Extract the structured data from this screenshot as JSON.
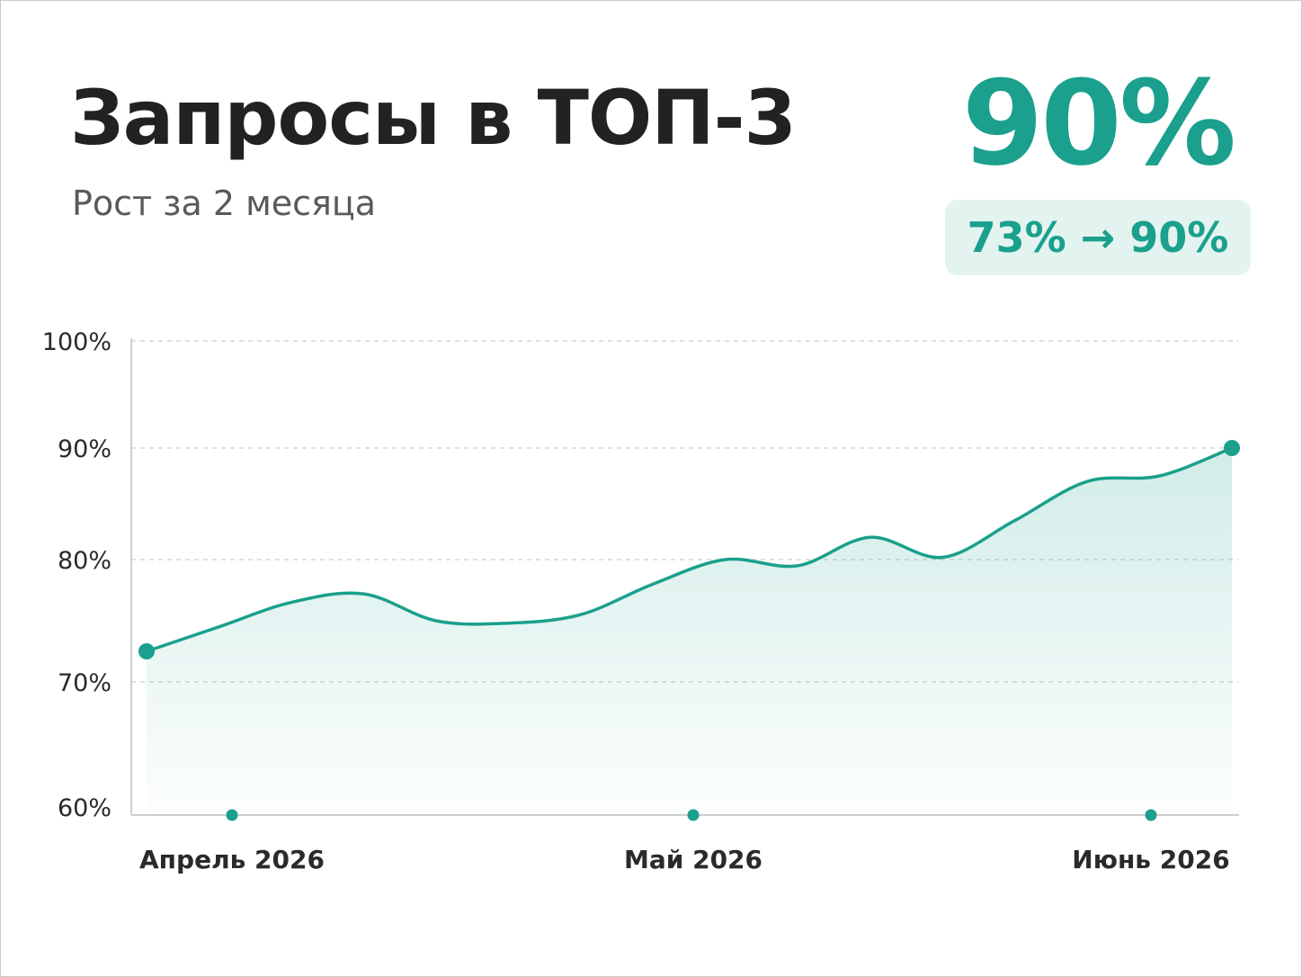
{
  "header": {
    "title": "Запросы в ТОП-3",
    "subtitle": "Рост за 2 месяца"
  },
  "kpi": {
    "value": "90%",
    "change": "73% → 90%"
  },
  "colors": {
    "accent": "#1aa08c",
    "badge_bg": "#e3f3f0",
    "title": "#222222",
    "grid": "#d6d6d6"
  },
  "chart_data": {
    "type": "area",
    "title": "Запросы в ТОП-3",
    "subtitle": "Рост за 2 месяца",
    "xlabel": "",
    "ylabel": "",
    "ylim": [
      60,
      100
    ],
    "yticks": [
      100,
      90,
      80,
      70,
      60
    ],
    "ytick_labels": [
      "100%",
      "90%",
      "80%",
      "70%",
      "60%"
    ],
    "xticks": [
      "Апрель 2026",
      "Май 2026",
      "Июнь 2026"
    ],
    "grid": true,
    "series": [
      {
        "values": [
          72.5,
          74.5,
          76.5,
          77.2,
          75.0,
          74.8,
          75.5,
          78.0,
          80.0,
          79.5,
          82.0,
          80.2,
          83.5,
          87.0,
          87.5,
          90.0
        ]
      }
    ]
  }
}
